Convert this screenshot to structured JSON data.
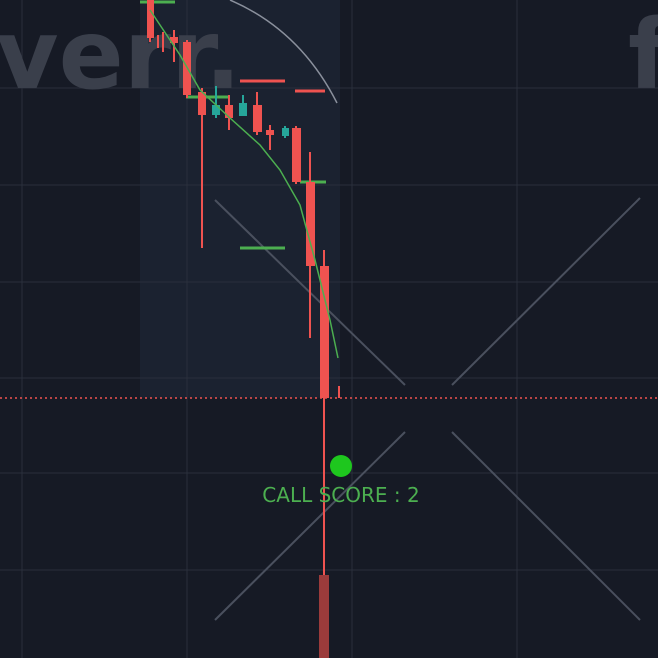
{
  "watermark": {
    "left": "verr.",
    "right": "f"
  },
  "annotation": {
    "label": "CALL SCORE : 2"
  }
}
